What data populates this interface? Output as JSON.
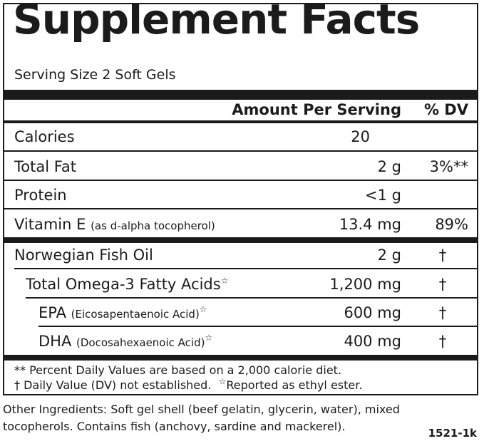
{
  "title": "Supplement Facts",
  "serving_size": "Serving Size 2 Soft Gels",
  "header": {
    "amount_label": "Amount Per Serving",
    "dv_label": "% DV"
  },
  "nutrients": [
    {
      "name": "Calories",
      "qualifier": "",
      "amount": "20",
      "dv": ""
    },
    {
      "name": "Total Fat",
      "qualifier": "",
      "amount": "2 g",
      "dv": "3%**"
    },
    {
      "name": "Protein",
      "qualifier": "",
      "amount": "<1 g",
      "dv": ""
    },
    {
      "name": "Vitamin E",
      "qualifier": "(as d-alpha tocopherol)",
      "amount": "13.4 mg",
      "dv": "89%"
    }
  ],
  "ingredients": [
    {
      "name": "Norwegian Fish Oil",
      "qualifier": "",
      "star": "",
      "amount": "2 g",
      "dv": "†"
    },
    {
      "name": "Total Omega-3 Fatty Acids",
      "qualifier": "",
      "star": "☆",
      "amount": "1,200 mg",
      "dv": "†"
    },
    {
      "name": "EPA",
      "qualifier": "(Eicosapentaenoic Acid)",
      "star": "☆",
      "amount": "600 mg",
      "dv": "†"
    },
    {
      "name": "DHA",
      "qualifier": "(Docosahexaenoic Acid)",
      "star": "☆",
      "amount": "400 mg",
      "dv": "†"
    }
  ],
  "footnotes": {
    "percent_daily": "** Percent Daily Values are based on a 2,000 calorie diet.",
    "dv_not_established": "† Daily Value (DV) not established.",
    "ethyl_star": "☆",
    "ethyl_ester": "Reported as ethyl ester."
  },
  "other_ingredients": "Other Ingredients: Soft gel shell (beef gelatin, glycerin, water), mixed tocopherols. Contains fish (anchovy, sardine and mackerel).",
  "label_code": "1521-1k"
}
